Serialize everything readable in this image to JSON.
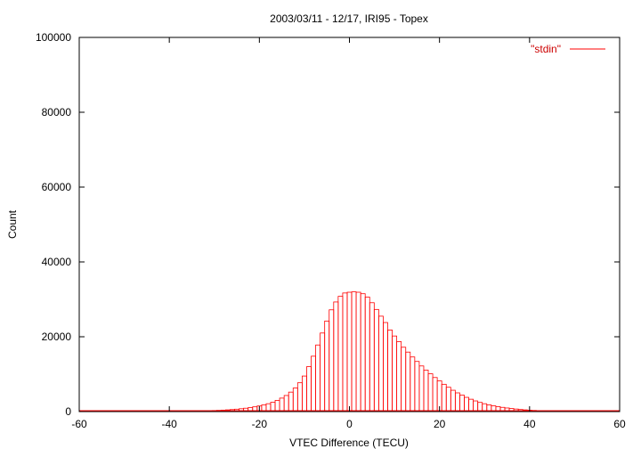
{
  "chart_data": {
    "type": "bar",
    "title": "2003/03/11 - 12/17, IRI95 - Topex",
    "xlabel": "VTEC Difference (TECU)",
    "ylabel": "Count",
    "xlim": [
      -60,
      60
    ],
    "ylim": [
      0,
      100000
    ],
    "xticks": [
      "-60",
      "-40",
      "-20",
      "0",
      "20",
      "40",
      "60"
    ],
    "yticks": [
      "0",
      "20000",
      "40000",
      "60000",
      "80000",
      "100000"
    ],
    "grid": false,
    "legend_position": "top-right",
    "bar_width": 1,
    "series": [
      {
        "name": "\"stdin\"",
        "color": "#ff0000",
        "x": [
          -40,
          -39,
          -38,
          -37,
          -36,
          -35,
          -34,
          -33,
          -32,
          -31,
          -30,
          -29,
          -28,
          -27,
          -26,
          -25,
          -24,
          -23,
          -22,
          -21,
          -20,
          -19,
          -18,
          -17,
          -16,
          -15,
          -14,
          -13,
          -12,
          -11,
          -10,
          -9,
          -8,
          -7,
          -6,
          -5,
          -4,
          -3,
          -2,
          -1,
          0,
          1,
          2,
          3,
          4,
          5,
          6,
          7,
          8,
          9,
          10,
          11,
          12,
          13,
          14,
          15,
          16,
          17,
          18,
          19,
          20,
          21,
          22,
          23,
          24,
          25,
          26,
          27,
          28,
          29,
          30,
          31,
          32,
          33,
          34,
          35,
          36,
          37,
          38,
          39,
          40,
          41,
          42,
          43,
          44,
          45
        ],
        "values": [
          50,
          60,
          70,
          80,
          100,
          120,
          140,
          170,
          200,
          240,
          280,
          330,
          390,
          460,
          540,
          640,
          760,
          900,
          1070,
          1270,
          1500,
          1780,
          2100,
          2500,
          3000,
          3600,
          4300,
          5200,
          6300,
          7700,
          9500,
          12000,
          14800,
          17800,
          21000,
          24200,
          27200,
          29300,
          30800,
          31700,
          31900,
          32000,
          31900,
          31500,
          30600,
          29100,
          27300,
          25500,
          23800,
          21800,
          20200,
          18700,
          17200,
          15900,
          14600,
          13400,
          12200,
          11100,
          10100,
          9100,
          8200,
          7300,
          6500,
          5700,
          5000,
          4400,
          3800,
          3300,
          2850,
          2450,
          2100,
          1800,
          1550,
          1330,
          1130,
          960,
          810,
          680,
          560,
          460,
          380,
          310,
          250,
          200,
          160,
          120
        ]
      }
    ]
  }
}
